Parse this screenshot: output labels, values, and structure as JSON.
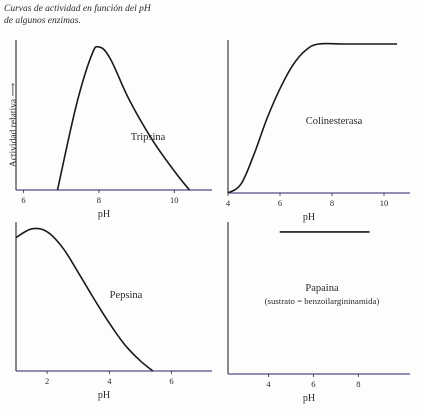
{
  "caption": {
    "line1": "Curvas de actividad en función del pH",
    "line2": "de algunos enzimas."
  },
  "ylabel": "Actividad relativa",
  "chart_data": [
    {
      "type": "line",
      "enzyme": "Tripsina",
      "note": "",
      "xlabel": "pH",
      "xlim": [
        5.8,
        11
      ],
      "xticks": [
        6,
        8,
        10
      ],
      "ylim": [
        0,
        1
      ],
      "x": [
        6.9,
        7.4,
        7.8,
        8.0,
        8.3,
        8.8,
        9.4,
        10.0,
        10.4
      ],
      "y": [
        0.0,
        0.58,
        0.92,
        0.98,
        0.9,
        0.62,
        0.35,
        0.13,
        0.0
      ]
    },
    {
      "type": "line",
      "enzyme": "Colinesterasa",
      "note": "",
      "xlabel": "pH",
      "xlim": [
        4,
        11
      ],
      "xticks": [
        4,
        6,
        8,
        10
      ],
      "ylim": [
        0,
        1
      ],
      "x": [
        4.0,
        4.5,
        5.0,
        5.5,
        6.0,
        6.5,
        7.0,
        7.5,
        8.5,
        10.5
      ],
      "y": [
        0.0,
        0.06,
        0.26,
        0.5,
        0.7,
        0.86,
        0.96,
        1.0,
        1.0,
        1.0
      ]
    },
    {
      "type": "line",
      "enzyme": "Pepsina",
      "note": "",
      "xlabel": "pH",
      "xlim": [
        1,
        7.3
      ],
      "xticks": [
        2,
        4,
        6
      ],
      "ylim": [
        0,
        1
      ],
      "x": [
        1.0,
        1.5,
        2.0,
        2.5,
        3.0,
        3.5,
        4.0,
        4.5,
        5.0,
        5.4
      ],
      "y": [
        0.92,
        0.98,
        0.96,
        0.85,
        0.68,
        0.5,
        0.33,
        0.18,
        0.07,
        0.0
      ]
    },
    {
      "type": "line",
      "enzyme": "Papaina",
      "note": "(sustrato = benzoilargininamida)",
      "xlabel": "pH",
      "xlim": [
        2.2,
        10.3
      ],
      "xticks": [
        4,
        6,
        8
      ],
      "ylim": [
        0,
        1
      ],
      "x": [
        4.5,
        8.5
      ],
      "y": [
        0.96,
        0.96
      ]
    }
  ]
}
